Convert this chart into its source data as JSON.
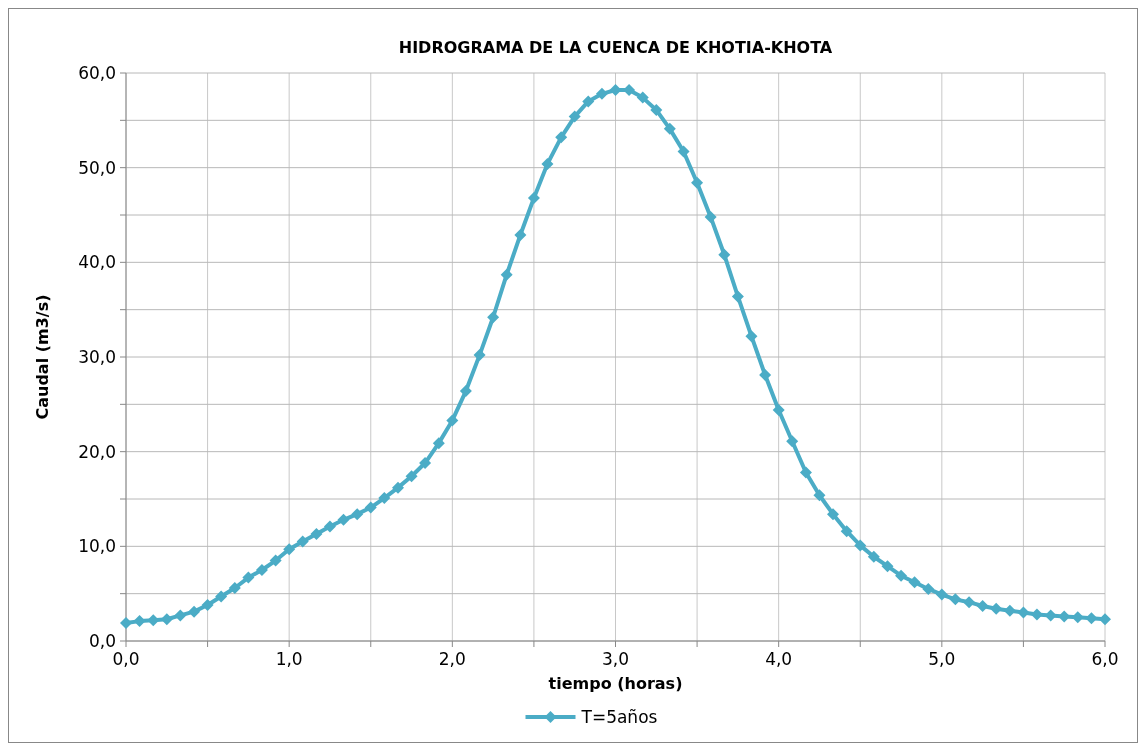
{
  "chart_data": {
    "type": "line",
    "title": "HIDROGRAMA DE LA CUENCA DE KHOTIA-KHOTA",
    "xlabel": "tiempo (horas)",
    "ylabel": "Caudal (m3/s)",
    "xlim": [
      0,
      6
    ],
    "xticks": [
      {
        "value": 0,
        "label": "0,0"
      },
      {
        "value": 0.5,
        "label": null
      },
      {
        "value": 1,
        "label": "1,0"
      },
      {
        "value": 1.5,
        "label": null
      },
      {
        "value": 2,
        "label": "2,0"
      },
      {
        "value": 2.5,
        "label": null
      },
      {
        "value": 3,
        "label": "3,0"
      },
      {
        "value": 3.5,
        "label": null
      },
      {
        "value": 4,
        "label": "4,0"
      },
      {
        "value": 4.5,
        "label": null
      },
      {
        "value": 5,
        "label": "5,0"
      },
      {
        "value": 5.5,
        "label": null
      },
      {
        "value": 6,
        "label": "6,0"
      }
    ],
    "ylim": [
      0,
      60
    ],
    "yticks": [
      {
        "value": 0,
        "label": "0,0"
      },
      {
        "value": 5,
        "label": null
      },
      {
        "value": 10,
        "label": "10,0"
      },
      {
        "value": 15,
        "label": null
      },
      {
        "value": 20,
        "label": "20,0"
      },
      {
        "value": 25,
        "label": null
      },
      {
        "value": 30,
        "label": "30,0"
      },
      {
        "value": 35,
        "label": null
      },
      {
        "value": 40,
        "label": "40,0"
      },
      {
        "value": 45,
        "label": null
      },
      {
        "value": 50,
        "label": "50,0"
      },
      {
        "value": 55,
        "label": null
      },
      {
        "value": 60,
        "label": "60,0"
      }
    ],
    "grid": true,
    "legend": "bottom",
    "marker": "diamond",
    "line_style": "solid",
    "x": [
      0,
      0.083,
      0.167,
      0.25,
      0.333,
      0.417,
      0.5,
      0.583,
      0.667,
      0.75,
      0.833,
      0.917,
      1,
      1.083,
      1.167,
      1.25,
      1.333,
      1.417,
      1.5,
      1.583,
      1.667,
      1.75,
      1.833,
      1.917,
      2,
      2.083,
      2.167,
      2.25,
      2.333,
      2.417,
      2.5,
      2.583,
      2.667,
      2.75,
      2.833,
      2.917,
      3,
      3.083,
      3.167,
      3.25,
      3.333,
      3.417,
      3.5,
      3.583,
      3.667,
      3.75,
      3.833,
      3.917,
      4,
      4.083,
      4.167,
      4.25,
      4.333,
      4.417,
      4.5,
      4.583,
      4.667,
      4.75,
      4.833,
      4.917,
      5,
      5.083,
      5.167,
      5.25,
      5.333,
      5.417,
      5.5,
      5.583,
      5.667,
      5.75,
      5.833,
      5.917,
      6
    ],
    "series": [
      {
        "name": "T=5años",
        "color": "#4bacc6",
        "values": [
          1.9,
          2.1,
          2.2,
          2.3,
          2.7,
          3.1,
          3.8,
          4.7,
          5.6,
          6.7,
          7.5,
          8.5,
          9.7,
          10.5,
          11.3,
          12.1,
          12.8,
          13.4,
          14.1,
          15.1,
          16.2,
          17.4,
          18.8,
          20.9,
          23.3,
          26.4,
          30.2,
          34.2,
          38.7,
          42.9,
          46.8,
          50.4,
          53.2,
          55.4,
          57.0,
          57.8,
          58.2,
          58.2,
          57.4,
          56.1,
          54.1,
          51.7,
          48.4,
          44.8,
          40.8,
          36.4,
          32.2,
          28.1,
          24.4,
          21.1,
          17.8,
          15.4,
          13.4,
          11.6,
          10.1,
          8.9,
          7.9,
          6.9,
          6.2,
          5.5,
          4.9,
          4.4,
          4.1,
          3.7,
          3.4,
          3.2,
          3.0,
          2.8,
          2.7,
          2.6,
          2.5,
          2.4,
          2.3
        ]
      }
    ]
  }
}
